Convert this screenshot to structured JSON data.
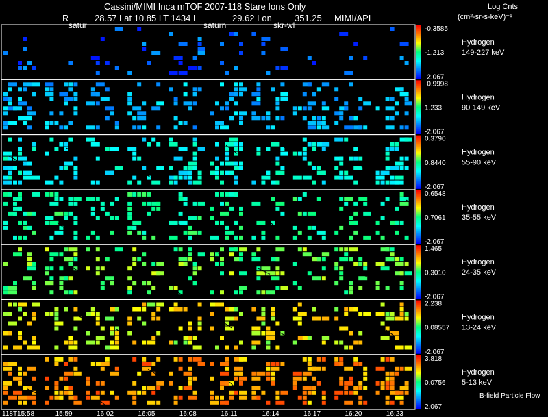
{
  "header": {
    "title": "Cassini/MIMI Inca mTOF  2007-118   Stare   Ions Only",
    "r_label": "R",
    "r_value": "28.57",
    "lat_lt": "Lat 10.85 LT 1434 L",
    "lon": "29.62 Lon",
    "lon_value": "351.25",
    "credit": "MIMI/APL",
    "marker_1": "satur",
    "marker_2": "saturn",
    "marker_3": "skr-wl",
    "colorbar_units_1": "Log Cnts",
    "colorbar_units_2": "(cm²-sr-s-keV)⁻¹"
  },
  "chart_data": {
    "type": "heatmap",
    "title": "Cassini/MIMI Inca mTOF  2007-118   Stare   Ions Only",
    "time_labels": [
      "118T15:58",
      "15:59",
      "16:02",
      "16:05",
      "16:08",
      "16:11",
      "16:14",
      "16:17",
      "16:20",
      "16:23"
    ],
    "rows": [
      {
        "species": "Hydrogen",
        "energy": "149-227 keV",
        "max": "-0.3585",
        "mid": "-1.213",
        "min": "-2.067",
        "level": 0.12,
        "spread": 0.1,
        "density": 0.11
      },
      {
        "species": "Hydrogen",
        "energy": "90-149 keV",
        "max": "-0.9998",
        "mid": "1.233",
        "min": "-2.067",
        "level": 0.24,
        "spread": 0.09,
        "density": 0.28
      },
      {
        "species": "Hydrogen",
        "energy": "55-90 keV",
        "max": "0.3790",
        "mid": "0.8440",
        "min": "-2.067",
        "level": 0.35,
        "spread": 0.09,
        "density": 0.27
      },
      {
        "species": "Hydrogen",
        "energy": "35-55 keV",
        "max": "0.6548",
        "mid": "0.7061",
        "min": "-2.067",
        "level": 0.46,
        "spread": 0.09,
        "density": 0.27
      },
      {
        "species": "Hydrogen",
        "energy": "24-35 keV",
        "max": "1.465",
        "mid": "0.3010",
        "min": "-2.067",
        "level": 0.55,
        "spread": 0.1,
        "density": 0.26
      },
      {
        "species": "Hydrogen",
        "energy": "13-24 keV",
        "max": "2.238",
        "mid": "0.08557",
        "min": "-2.067",
        "level": 0.67,
        "spread": 0.11,
        "density": 0.27
      },
      {
        "species": "Hydrogen",
        "energy": "5-13 keV",
        "max": "3.818",
        "mid": "0.0756",
        "min": "2.067",
        "level": 0.8,
        "spread": 0.12,
        "density": 0.34
      }
    ],
    "legend_note": "B-field Particle Flow",
    "colormap": [
      "#ff0000",
      "#ff8000",
      "#ffff00",
      "#00ff80",
      "#00ffff",
      "#0080ff",
      "#0000ff"
    ]
  }
}
